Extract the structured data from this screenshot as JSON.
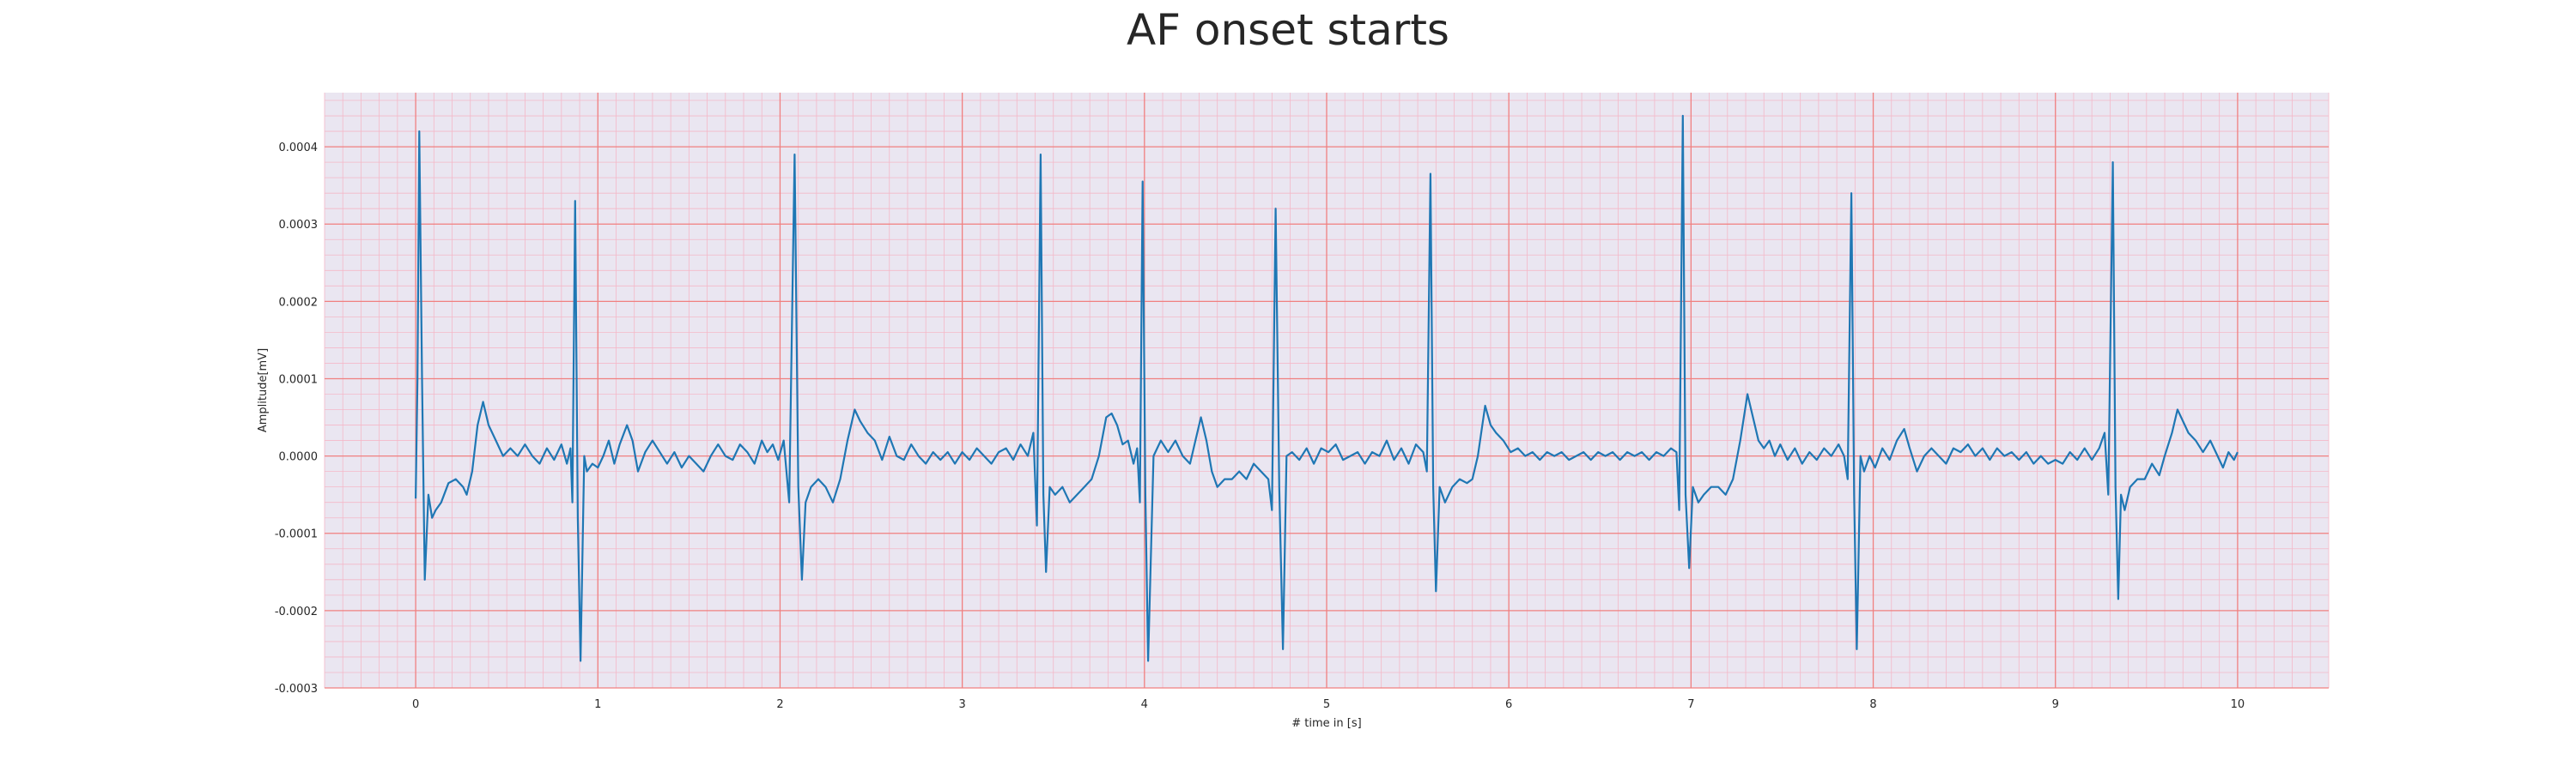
{
  "chart_data": {
    "type": "line",
    "title": "AF onset starts",
    "xlabel": "# time in [s]",
    "ylabel": "Amplitude[mV]",
    "xlim": [
      -0.5,
      10.5
    ],
    "ylim": [
      -0.0003,
      0.00047
    ],
    "x_ticks": [
      0,
      1,
      2,
      3,
      4,
      5,
      6,
      7,
      8,
      9,
      10
    ],
    "y_ticks": [
      -0.0003,
      -0.0002,
      -0.0001,
      0.0,
      0.0001,
      0.0002,
      0.0003,
      0.0004
    ],
    "x_tick_labels": [
      "0",
      "1",
      "2",
      "3",
      "4",
      "5",
      "6",
      "7",
      "8",
      "9",
      "10"
    ],
    "y_tick_labels": [
      "-0.0003",
      "-0.0002",
      "-0.0001",
      "0.0000",
      "0.0001",
      "0.0002",
      "0.0003",
      "0.0004"
    ],
    "grid": true,
    "colors": {
      "line": "#1f77b4",
      "plot_background": "#eae6f1",
      "major_grid": "#f08080",
      "minor_grid": "#f4b8c8"
    },
    "series": [
      {
        "values_desc": "ECG waveform sampled points (x seconds, y mV)",
        "points": [
          [
            0.0,
            -5.5e-05
          ],
          [
            0.01,
            0.0001
          ],
          [
            0.02,
            0.00042
          ],
          [
            0.035,
            0.0001
          ],
          [
            0.05,
            -0.00016
          ],
          [
            0.07,
            -5e-05
          ],
          [
            0.09,
            -8e-05
          ],
          [
            0.11,
            -7e-05
          ],
          [
            0.14,
            -6e-05
          ],
          [
            0.18,
            -3.5e-05
          ],
          [
            0.22,
            -3e-05
          ],
          [
            0.26,
            -4e-05
          ],
          [
            0.28,
            -5e-05
          ],
          [
            0.31,
            -2e-05
          ],
          [
            0.34,
            4e-05
          ],
          [
            0.37,
            7e-05
          ],
          [
            0.4,
            4e-05
          ],
          [
            0.44,
            2e-05
          ],
          [
            0.48,
            0.0
          ],
          [
            0.52,
            1e-05
          ],
          [
            0.56,
            0.0
          ],
          [
            0.6,
            1.5e-05
          ],
          [
            0.64,
            0.0
          ],
          [
            0.68,
            -1e-05
          ],
          [
            0.72,
            1e-05
          ],
          [
            0.76,
            -5e-06
          ],
          [
            0.8,
            1.5e-05
          ],
          [
            0.83,
            -1e-05
          ],
          [
            0.85,
            1e-05
          ],
          [
            0.86,
            -6e-05
          ],
          [
            0.875,
            0.00033
          ],
          [
            0.89,
            -8e-05
          ],
          [
            0.905,
            -0.000265
          ],
          [
            0.925,
            0.0
          ],
          [
            0.94,
            -2e-05
          ],
          [
            0.97,
            -1e-05
          ],
          [
            1.0,
            -1.5e-05
          ],
          [
            1.03,
            0.0
          ],
          [
            1.06,
            2e-05
          ],
          [
            1.09,
            -1e-05
          ],
          [
            1.12,
            1.5e-05
          ],
          [
            1.16,
            4e-05
          ],
          [
            1.19,
            2e-05
          ],
          [
            1.22,
            -2e-05
          ],
          [
            1.26,
            5e-06
          ],
          [
            1.3,
            2e-05
          ],
          [
            1.34,
            5e-06
          ],
          [
            1.38,
            -1e-05
          ],
          [
            1.42,
            5e-06
          ],
          [
            1.46,
            -1.5e-05
          ],
          [
            1.5,
            0.0
          ],
          [
            1.54,
            -1e-05
          ],
          [
            1.58,
            -2e-05
          ],
          [
            1.62,
            0.0
          ],
          [
            1.66,
            1.5e-05
          ],
          [
            1.7,
            0.0
          ],
          [
            1.74,
            -5e-06
          ],
          [
            1.78,
            1.5e-05
          ],
          [
            1.82,
            5e-06
          ],
          [
            1.86,
            -1e-05
          ],
          [
            1.9,
            2e-05
          ],
          [
            1.93,
            5e-06
          ],
          [
            1.96,
            1.5e-05
          ],
          [
            1.99,
            -5e-06
          ],
          [
            2.02,
            2e-05
          ],
          [
            2.05,
            -6e-05
          ],
          [
            2.08,
            0.00039
          ],
          [
            2.1,
            -4e-05
          ],
          [
            2.12,
            -0.00016
          ],
          [
            2.14,
            -6e-05
          ],
          [
            2.17,
            -4e-05
          ],
          [
            2.21,
            -3e-05
          ],
          [
            2.25,
            -4e-05
          ],
          [
            2.29,
            -6e-05
          ],
          [
            2.33,
            -3e-05
          ],
          [
            2.37,
            2e-05
          ],
          [
            2.41,
            6e-05
          ],
          [
            2.44,
            4.5e-05
          ],
          [
            2.48,
            3e-05
          ],
          [
            2.52,
            2e-05
          ],
          [
            2.56,
            -5e-06
          ],
          [
            2.6,
            2.5e-05
          ],
          [
            2.64,
            0.0
          ],
          [
            2.68,
            -5e-06
          ],
          [
            2.72,
            1.5e-05
          ],
          [
            2.76,
            0.0
          ],
          [
            2.8,
            -1e-05
          ],
          [
            2.84,
            5e-06
          ],
          [
            2.88,
            -5e-06
          ],
          [
            2.92,
            5e-06
          ],
          [
            2.96,
            -1e-05
          ],
          [
            3.0,
            5e-06
          ],
          [
            3.04,
            -5e-06
          ],
          [
            3.08,
            1e-05
          ],
          [
            3.12,
            0.0
          ],
          [
            3.16,
            -1e-05
          ],
          [
            3.2,
            5e-06
          ],
          [
            3.24,
            1e-05
          ],
          [
            3.28,
            -5e-06
          ],
          [
            3.32,
            1.5e-05
          ],
          [
            3.36,
            0.0
          ],
          [
            3.39,
            3e-05
          ],
          [
            3.41,
            -9e-05
          ],
          [
            3.43,
            0.00039
          ],
          [
            3.445,
            -5e-05
          ],
          [
            3.46,
            -0.00015
          ],
          [
            3.48,
            -4e-05
          ],
          [
            3.51,
            -5e-05
          ],
          [
            3.55,
            -4e-05
          ],
          [
            3.59,
            -6e-05
          ],
          [
            3.63,
            -5e-05
          ],
          [
            3.67,
            -4e-05
          ],
          [
            3.71,
            -3e-05
          ],
          [
            3.75,
            0.0
          ],
          [
            3.79,
            5e-05
          ],
          [
            3.82,
            5.5e-05
          ],
          [
            3.85,
            4e-05
          ],
          [
            3.88,
            1.5e-05
          ],
          [
            3.91,
            2e-05
          ],
          [
            3.94,
            -1e-05
          ],
          [
            3.96,
            1e-05
          ],
          [
            3.975,
            -6e-05
          ],
          [
            3.99,
            0.000355
          ],
          [
            4.005,
            -5e-05
          ],
          [
            4.02,
            -0.000265
          ],
          [
            4.05,
            0.0
          ],
          [
            4.09,
            2e-05
          ],
          [
            4.13,
            5e-06
          ],
          [
            4.17,
            2e-05
          ],
          [
            4.21,
            0.0
          ],
          [
            4.25,
            -1e-05
          ],
          [
            4.28,
            2e-05
          ],
          [
            4.31,
            5e-05
          ],
          [
            4.34,
            2e-05
          ],
          [
            4.37,
            -2e-05
          ],
          [
            4.4,
            -4e-05
          ],
          [
            4.44,
            -3e-05
          ],
          [
            4.48,
            -3e-05
          ],
          [
            4.52,
            -2e-05
          ],
          [
            4.56,
            -3e-05
          ],
          [
            4.6,
            -1e-05
          ],
          [
            4.64,
            -2e-05
          ],
          [
            4.68,
            -3e-05
          ],
          [
            4.7,
            -7e-05
          ],
          [
            4.72,
            0.00032
          ],
          [
            4.74,
            -4e-05
          ],
          [
            4.76,
            -0.00025
          ],
          [
            4.78,
            0.0
          ],
          [
            4.81,
            5e-06
          ],
          [
            4.85,
            -5e-06
          ],
          [
            4.89,
            1e-05
          ],
          [
            4.93,
            -1e-05
          ],
          [
            4.97,
            1e-05
          ],
          [
            5.01,
            5e-06
          ],
          [
            5.05,
            1.5e-05
          ],
          [
            5.09,
            -5e-06
          ],
          [
            5.13,
            0.0
          ],
          [
            5.17,
            5e-06
          ],
          [
            5.21,
            -1e-05
          ],
          [
            5.25,
            5e-06
          ],
          [
            5.29,
            0.0
          ],
          [
            5.33,
            2e-05
          ],
          [
            5.37,
            -5e-06
          ],
          [
            5.41,
            1e-05
          ],
          [
            5.45,
            -1e-05
          ],
          [
            5.49,
            1.5e-05
          ],
          [
            5.53,
            5e-06
          ],
          [
            5.55,
            -2e-05
          ],
          [
            5.57,
            0.000365
          ],
          [
            5.585,
            -4e-05
          ],
          [
            5.6,
            -0.000175
          ],
          [
            5.62,
            -4e-05
          ],
          [
            5.65,
            -6e-05
          ],
          [
            5.69,
            -4e-05
          ],
          [
            5.73,
            -3e-05
          ],
          [
            5.77,
            -3.5e-05
          ],
          [
            5.8,
            -3e-05
          ],
          [
            5.83,
            0.0
          ],
          [
            5.87,
            6.5e-05
          ],
          [
            5.9,
            4e-05
          ],
          [
            5.93,
            3e-05
          ],
          [
            5.97,
            2e-05
          ],
          [
            6.01,
            5e-06
          ],
          [
            6.05,
            1e-05
          ],
          [
            6.09,
            0.0
          ],
          [
            6.13,
            5e-06
          ],
          [
            6.17,
            -5e-06
          ],
          [
            6.21,
            5e-06
          ],
          [
            6.25,
            0.0
          ],
          [
            6.29,
            5e-06
          ],
          [
            6.33,
            -5e-06
          ],
          [
            6.37,
            0.0
          ],
          [
            6.41,
            5e-06
          ],
          [
            6.45,
            -5e-06
          ],
          [
            6.49,
            5e-06
          ],
          [
            6.53,
            0.0
          ],
          [
            6.57,
            5e-06
          ],
          [
            6.61,
            -5e-06
          ],
          [
            6.65,
            5e-06
          ],
          [
            6.69,
            0.0
          ],
          [
            6.73,
            5e-06
          ],
          [
            6.77,
            -5e-06
          ],
          [
            6.81,
            5e-06
          ],
          [
            6.85,
            0.0
          ],
          [
            6.89,
            1e-05
          ],
          [
            6.92,
            5e-06
          ],
          [
            6.935,
            -7e-05
          ],
          [
            6.955,
            0.00044
          ],
          [
            6.97,
            -5e-05
          ],
          [
            6.99,
            -0.000145
          ],
          [
            7.01,
            -4e-05
          ],
          [
            7.04,
            -6e-05
          ],
          [
            7.07,
            -5e-05
          ],
          [
            7.11,
            -4e-05
          ],
          [
            7.15,
            -4e-05
          ],
          [
            7.19,
            -5e-05
          ],
          [
            7.23,
            -3e-05
          ],
          [
            7.27,
            2e-05
          ],
          [
            7.31,
            8e-05
          ],
          [
            7.34,
            5e-05
          ],
          [
            7.37,
            2e-05
          ],
          [
            7.4,
            1e-05
          ],
          [
            7.43,
            2e-05
          ],
          [
            7.46,
            0.0
          ],
          [
            7.49,
            1.5e-05
          ],
          [
            7.53,
            -5e-06
          ],
          [
            7.57,
            1e-05
          ],
          [
            7.61,
            -1e-05
          ],
          [
            7.65,
            5e-06
          ],
          [
            7.69,
            -5e-06
          ],
          [
            7.73,
            1e-05
          ],
          [
            7.77,
            0.0
          ],
          [
            7.81,
            1.5e-05
          ],
          [
            7.84,
            0.0
          ],
          [
            7.86,
            -3e-05
          ],
          [
            7.88,
            0.00034
          ],
          [
            7.895,
            -5e-05
          ],
          [
            7.91,
            -0.00025
          ],
          [
            7.93,
            0.0
          ],
          [
            7.95,
            -2e-05
          ],
          [
            7.98,
            0.0
          ],
          [
            8.01,
            -1.5e-05
          ],
          [
            8.05,
            1e-05
          ],
          [
            8.09,
            -5e-06
          ],
          [
            8.13,
            2e-05
          ],
          [
            8.17,
            3.5e-05
          ],
          [
            8.2,
            1e-05
          ],
          [
            8.24,
            -2e-05
          ],
          [
            8.28,
            0.0
          ],
          [
            8.32,
            1e-05
          ],
          [
            8.36,
            0.0
          ],
          [
            8.4,
            -1e-05
          ],
          [
            8.44,
            1e-05
          ],
          [
            8.48,
            5e-06
          ],
          [
            8.52,
            1.5e-05
          ],
          [
            8.56,
            0.0
          ],
          [
            8.6,
            1e-05
          ],
          [
            8.64,
            -5e-06
          ],
          [
            8.68,
            1e-05
          ],
          [
            8.72,
            0.0
          ],
          [
            8.76,
            5e-06
          ],
          [
            8.8,
            -5e-06
          ],
          [
            8.84,
            5e-06
          ],
          [
            8.88,
            -1e-05
          ],
          [
            8.92,
            0.0
          ],
          [
            8.96,
            -1e-05
          ],
          [
            9.0,
            -5e-06
          ],
          [
            9.04,
            -1e-05
          ],
          [
            9.08,
            5e-06
          ],
          [
            9.12,
            -5e-06
          ],
          [
            9.16,
            1e-05
          ],
          [
            9.2,
            -5e-06
          ],
          [
            9.24,
            1e-05
          ],
          [
            9.27,
            3e-05
          ],
          [
            9.29,
            -5e-05
          ],
          [
            9.315,
            0.00038
          ],
          [
            9.33,
            -4e-05
          ],
          [
            9.345,
            -0.000185
          ],
          [
            9.36,
            -5e-05
          ],
          [
            9.38,
            -7e-05
          ],
          [
            9.41,
            -4e-05
          ],
          [
            9.45,
            -3e-05
          ],
          [
            9.49,
            -3e-05
          ],
          [
            9.53,
            -1e-05
          ],
          [
            9.57,
            -2.5e-05
          ],
          [
            9.6,
            0.0
          ],
          [
            9.64,
            3e-05
          ],
          [
            9.67,
            6e-05
          ],
          [
            9.7,
            4.5e-05
          ],
          [
            9.73,
            3e-05
          ],
          [
            9.77,
            2e-05
          ],
          [
            9.81,
            5e-06
          ],
          [
            9.85,
            2e-05
          ],
          [
            9.89,
            0.0
          ],
          [
            9.92,
            -1.5e-05
          ],
          [
            9.95,
            5e-06
          ],
          [
            9.98,
            -5e-06
          ],
          [
            10.0,
            5e-06
          ]
        ]
      }
    ]
  }
}
